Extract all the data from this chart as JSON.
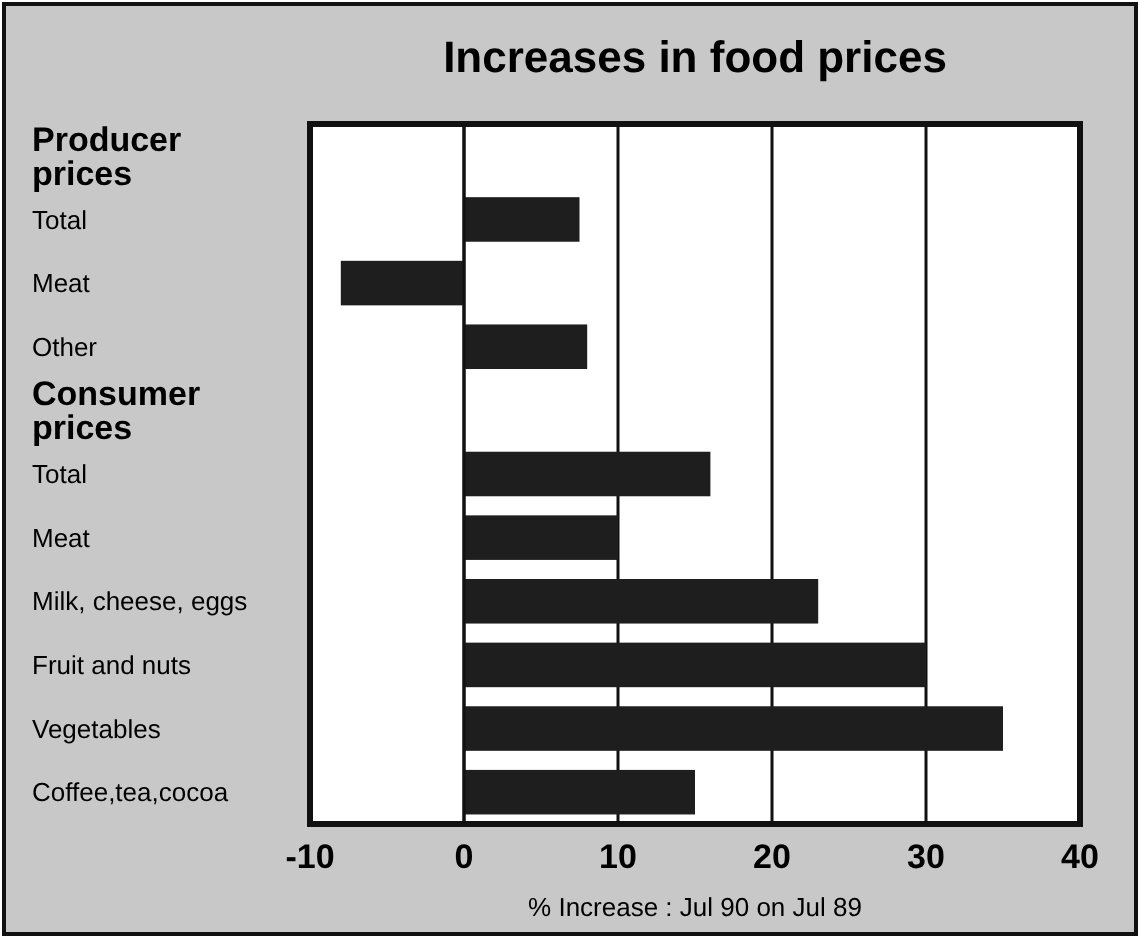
{
  "chart_data": {
    "type": "bar",
    "orientation": "horizontal",
    "title": "Increases in food prices",
    "xlabel": "% Increase : Jul 90 on Jul 89",
    "categories": [
      "Producer prices",
      "Total",
      "Meat",
      "Other",
      "Consumer prices",
      "Total",
      "Meat",
      "Milk, cheese, eggs",
      "Fruit and nuts",
      "Vegetables",
      "Coffee,tea,cocoa"
    ],
    "values": [
      null,
      7.5,
      -8,
      8,
      null,
      16,
      10,
      23,
      30,
      35,
      15
    ],
    "color": "#1e1e1e",
    "xlim": [
      -10,
      40
    ],
    "xticks": [
      -10,
      0,
      10,
      20,
      30,
      40
    ],
    "grid": "x"
  }
}
